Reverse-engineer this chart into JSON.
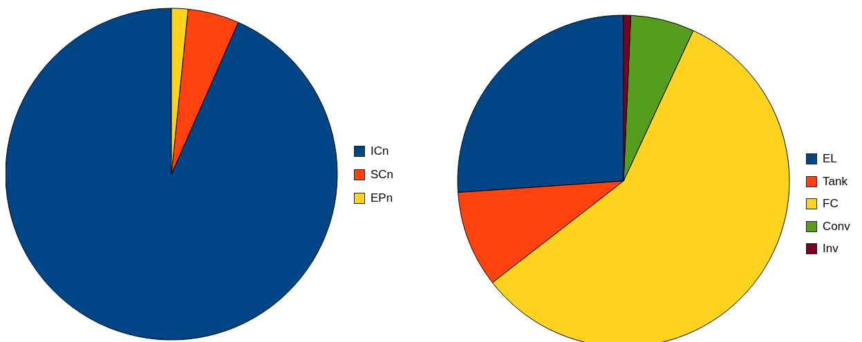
{
  "chart_data": [
    {
      "type": "pie",
      "categories": [
        "ICn",
        "SCn",
        "EPn"
      ],
      "values": [
        93.4,
        5.0,
        1.6
      ],
      "colors": [
        "#004586",
        "#ff420e",
        "#ffd320"
      ],
      "legend": "right"
    },
    {
      "type": "pie",
      "categories": [
        "EL",
        "Tank",
        "FC",
        "Conv",
        "Inv"
      ],
      "values": [
        26.1,
        9.4,
        57.6,
        6.2,
        0.7
      ],
      "colors": [
        "#004586",
        "#ff420e",
        "#ffd320",
        "#579d1c",
        "#7e0021"
      ],
      "legend": "right"
    }
  ]
}
